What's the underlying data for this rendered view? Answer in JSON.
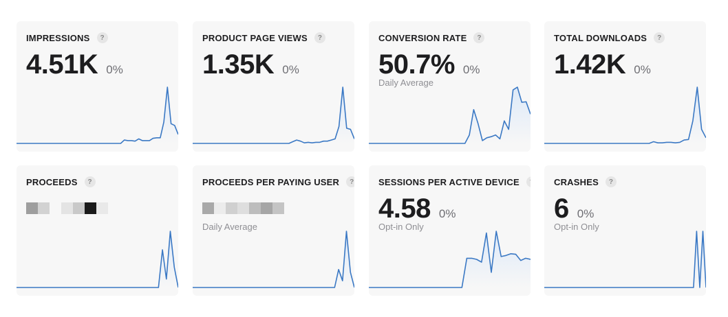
{
  "colors": {
    "line": "#3a78c4",
    "fill": "#dde9f8",
    "baseline": "#3a78c4"
  },
  "cards": [
    {
      "title": "IMPRESSIONS",
      "help": "?",
      "value": "4.51K",
      "change": "0%",
      "subtitle": "",
      "series": [
        0,
        0,
        0,
        0,
        0,
        0,
        0,
        0,
        0,
        0,
        0,
        0,
        0,
        0,
        0,
        0,
        0,
        0,
        0,
        0,
        0,
        0,
        0,
        0,
        0,
        0,
        0,
        0,
        0,
        0,
        0.06,
        0.05,
        0.05,
        0.04,
        0.08,
        0.05,
        0.05,
        0.05,
        0.09,
        0.1,
        0.1,
        0.38,
        1.0,
        0.35,
        0.32,
        0.16
      ]
    },
    {
      "title": "PRODUCT PAGE VIEWS",
      "help": "?",
      "value": "1.35K",
      "change": "0%",
      "subtitle": "",
      "series": [
        0,
        0,
        0,
        0,
        0,
        0,
        0,
        0,
        0,
        0,
        0,
        0,
        0,
        0,
        0,
        0,
        0,
        0,
        0,
        0,
        0,
        0,
        0,
        0,
        0,
        0,
        0.03,
        0.06,
        0.04,
        0.01,
        0.02,
        0.01,
        0.02,
        0.02,
        0.04,
        0.04,
        0.06,
        0.08,
        0.3,
        1.0,
        0.27,
        0.25,
        0.08
      ]
    },
    {
      "title": "CONVERSION RATE",
      "help": "?",
      "value": "50.7%",
      "change": "0%",
      "subtitle": "Daily Average",
      "series": [
        0,
        0,
        0,
        0,
        0,
        0,
        0,
        0,
        0,
        0,
        0,
        0,
        0,
        0,
        0,
        0,
        0,
        0,
        0,
        0,
        0,
        0,
        0,
        0.15,
        0.6,
        0.35,
        0.05,
        0.1,
        0.12,
        0.15,
        0.08,
        0.4,
        0.25,
        0.95,
        1.0,
        0.73,
        0.74,
        0.52
      ]
    },
    {
      "title": "TOTAL DOWNLOADS",
      "help": "?",
      "value": "1.42K",
      "change": "0%",
      "subtitle": "",
      "series": [
        0,
        0,
        0,
        0,
        0,
        0,
        0,
        0,
        0,
        0,
        0,
        0,
        0,
        0,
        0,
        0,
        0,
        0,
        0,
        0,
        0,
        0,
        0,
        0,
        0,
        0.03,
        0.01,
        0.01,
        0.02,
        0.02,
        0.01,
        0.02,
        0.06,
        0.07,
        0.4,
        1.0,
        0.25,
        0.1
      ]
    },
    {
      "title": "PROCEEDS",
      "help": "?",
      "value": "",
      "change": "",
      "subtitle": "",
      "series": [
        0,
        0,
        0,
        0,
        0,
        0,
        0,
        0,
        0,
        0,
        0,
        0,
        0,
        0,
        0,
        0,
        0,
        0,
        0,
        0,
        0,
        0,
        0,
        0,
        0,
        0,
        0,
        0,
        0,
        0,
        0,
        0,
        0,
        0,
        0,
        0,
        0,
        0.67,
        0.15,
        1.0,
        0.36,
        0
      ]
    },
    {
      "title": "PROCEEDS PER PAYING USER",
      "help": "?",
      "value": "",
      "change": "",
      "subtitle": "Daily Average",
      "series": [
        0,
        0,
        0,
        0,
        0,
        0,
        0,
        0,
        0,
        0,
        0,
        0,
        0,
        0,
        0,
        0,
        0,
        0,
        0,
        0,
        0,
        0,
        0,
        0,
        0,
        0,
        0,
        0,
        0,
        0,
        0,
        0,
        0,
        0,
        0,
        0,
        0,
        0.32,
        0.12,
        1.0,
        0.27,
        0
      ]
    },
    {
      "title": "SESSIONS PER ACTIVE DEVICE",
      "help": "?",
      "value": "4.58",
      "change": "0%",
      "subtitle": "Opt-in Only",
      "series": [
        0,
        0,
        0,
        0,
        0,
        0,
        0,
        0,
        0,
        0,
        0,
        0,
        0,
        0,
        0,
        0,
        0,
        0,
        0,
        0,
        0.52,
        0.52,
        0.5,
        0.45,
        0.97,
        0.27,
        1.0,
        0.55,
        0.57,
        0.6,
        0.59,
        0.48,
        0.52,
        0.5
      ]
    },
    {
      "title": "CRASHES",
      "help": "?",
      "value": "6",
      "change": "0%",
      "subtitle": "Opt-in Only",
      "series": [
        0,
        0,
        0,
        0,
        0,
        0,
        0,
        0,
        0,
        0,
        0,
        0,
        0,
        0,
        0,
        0,
        0,
        0,
        0,
        0,
        0,
        0,
        0,
        0,
        0,
        0,
        0,
        0,
        0,
        0,
        0,
        0,
        0,
        0,
        0,
        0,
        0,
        0,
        0,
        0,
        0,
        0,
        0,
        0,
        0,
        0,
        0,
        0,
        0,
        1.0,
        0,
        1.0,
        0
      ]
    }
  ]
}
